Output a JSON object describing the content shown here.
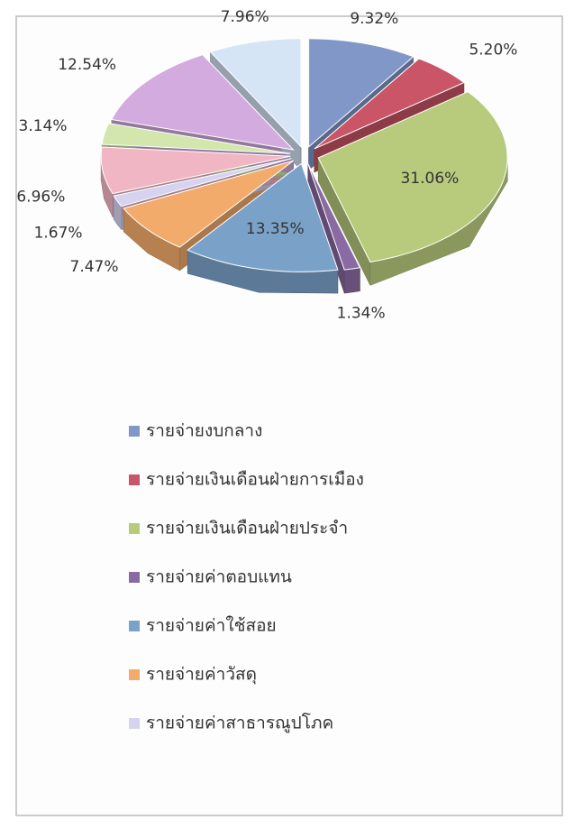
{
  "chart_data": {
    "type": "pie",
    "categories": [
      "รายจ่ายงบกลาง",
      "รายจ่ายเงินเดือนฝ่ายการเมือง",
      "รายจ่ายเงินเดือนฝ่ายประจำ",
      "รายจ่ายค่าตอบแทน",
      "รายจ่ายค่าใช้สอย",
      "รายจ่ายค่าวัสดุ",
      "รายจ่ายค่าสาธารณูปโภค",
      null,
      null,
      null,
      null
    ],
    "values": [
      9.32,
      5.2,
      31.06,
      1.34,
      13.35,
      7.47,
      1.67,
      6.96,
      3.14,
      12.54,
      7.96
    ],
    "value_labels": [
      "9.32%",
      "5.20%",
      "31.06%",
      "1.34%",
      "13.35%",
      "7.47%",
      "1.67%",
      "6.96%",
      "3.14%",
      "12.54%",
      "7.96%"
    ],
    "colors": [
      "#8197c8",
      "#c95566",
      "#b8cb7c",
      "#8a6aa3",
      "#7aa2c9",
      "#f3ab6c",
      "#d5d3f0",
      "#f1b6c4",
      "#d2e6ae",
      "#d4abdf",
      "#d6e5f5"
    ],
    "legend": "bottom"
  }
}
